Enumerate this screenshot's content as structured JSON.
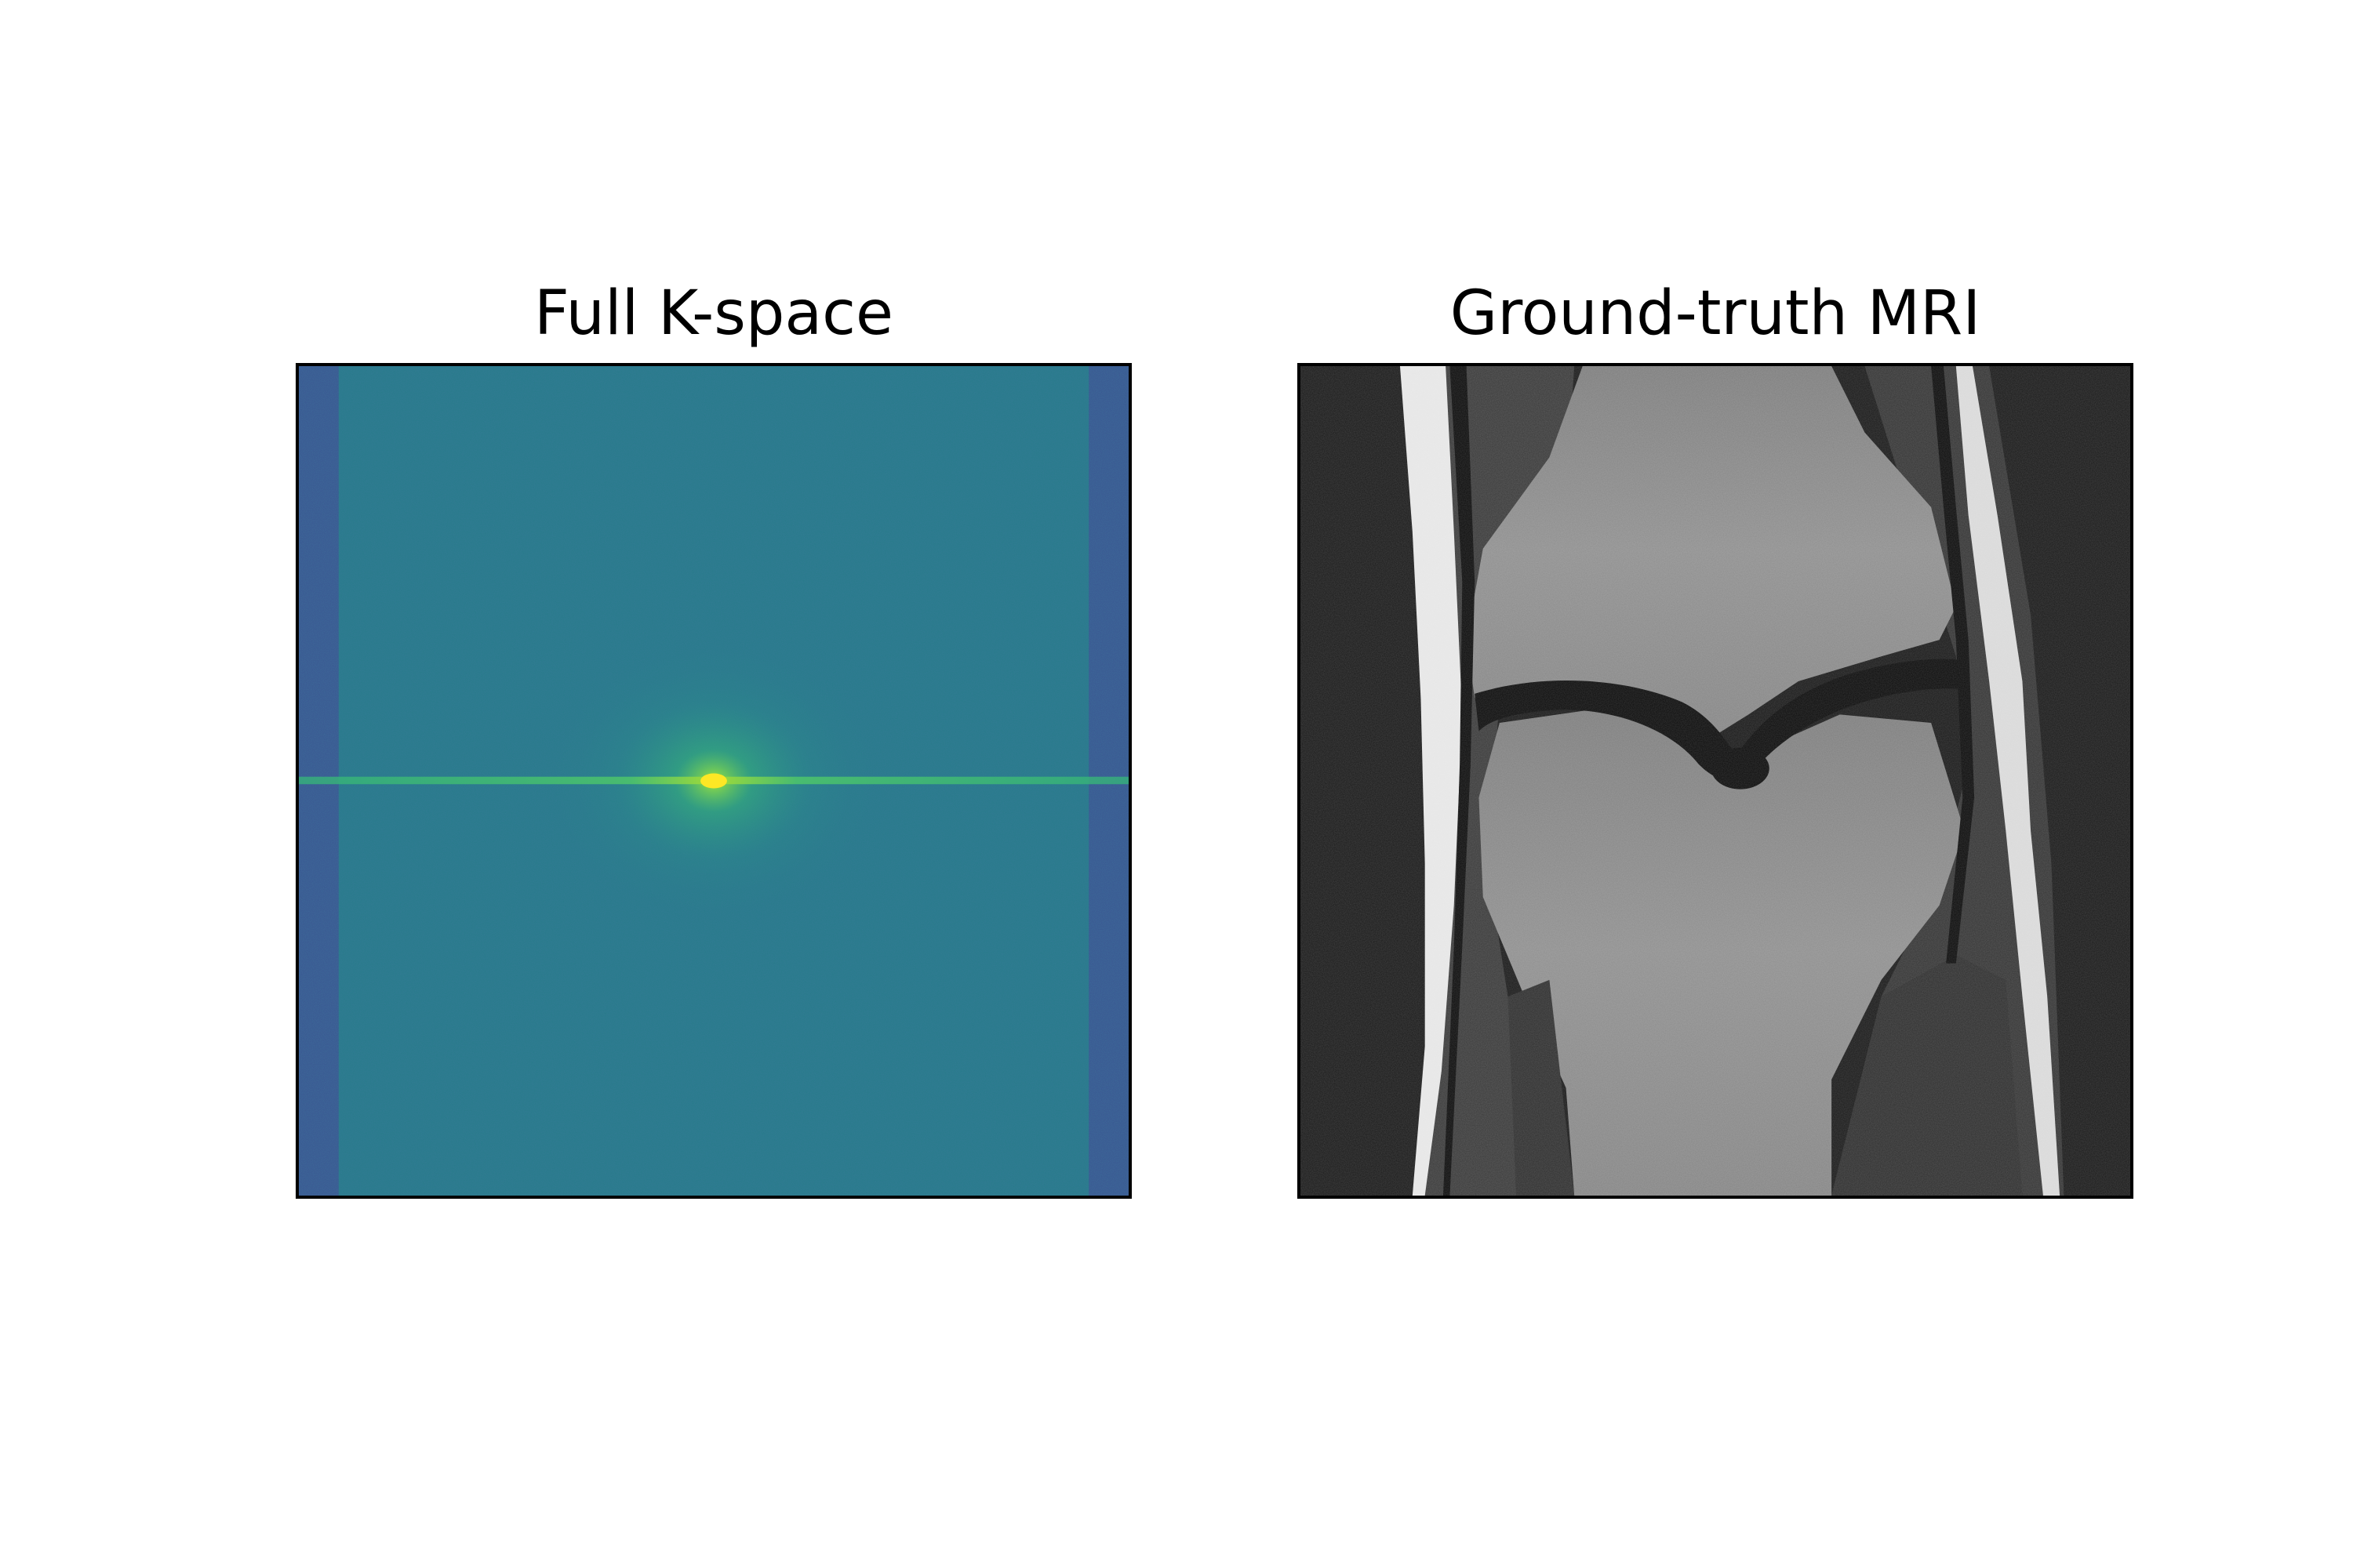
{
  "panels": [
    {
      "title": "Full K-space",
      "colormap": "viridis",
      "colors": {
        "edge_band": "#3b5b93",
        "background": "#2a7b8c",
        "center_glow": "#35b779",
        "center_peak": "#fde725"
      }
    },
    {
      "title": "Ground-truth MRI",
      "colormap": "gray",
      "colors": {
        "background": "#1a1a1a",
        "bone": "#8a8a8a",
        "bright_tissue": "#e6e6e6",
        "dark_band": "#0c0c0c"
      }
    }
  ]
}
